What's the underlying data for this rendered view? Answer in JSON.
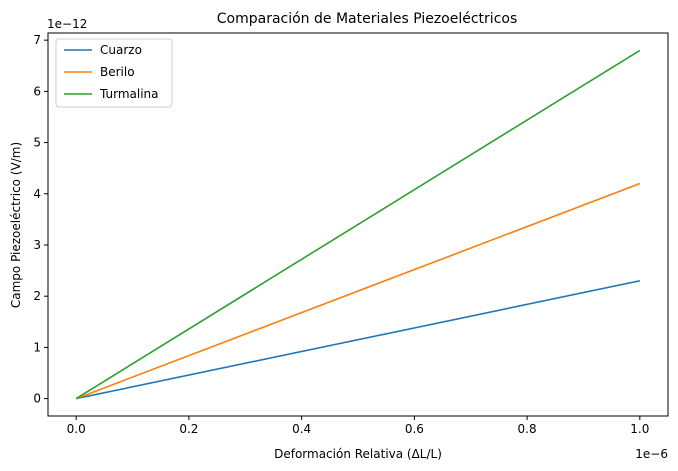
{
  "chart_data": {
    "type": "line",
    "title": "Comparación de Materiales Piezoeléctricos",
    "xlabel": "Deformación Relativa (ΔL/L)",
    "ylabel": "Campo Piezoeléctrico (V/m)",
    "x_offset_label": "1e−6",
    "y_offset_label": "1e−12",
    "x_scale": 1e-06,
    "y_scale": 1e-12,
    "xlim": [
      -5e-08,
      1.05e-06
    ],
    "ylim": [
      -3.4e-13,
      7.14e-12
    ],
    "x_ticks": [
      0,
      2e-07,
      4e-07,
      6e-07,
      8e-07,
      1e-06
    ],
    "x_tick_labels": [
      "0.0",
      "0.2",
      "0.4",
      "0.6",
      "0.8",
      "1.0"
    ],
    "y_ticks": [
      0,
      1e-12,
      2e-12,
      3e-12,
      4e-12,
      5e-12,
      6e-12,
      7e-12
    ],
    "y_tick_labels": [
      "0",
      "1",
      "2",
      "3",
      "4",
      "5",
      "6",
      "7"
    ],
    "grid": false,
    "legend_position": "top-left",
    "series": [
      {
        "name": "Cuarzo",
        "color": "#1f77b4",
        "x": [
          0,
          1e-06
        ],
        "y": [
          0,
          2.3e-12
        ]
      },
      {
        "name": "Berilo",
        "color": "#ff7f0e",
        "x": [
          0,
          1e-06
        ],
        "y": [
          0,
          4.2e-12
        ]
      },
      {
        "name": "Turmalina",
        "color": "#2ca02c",
        "x": [
          0,
          1e-06
        ],
        "y": [
          0,
          6.8e-12
        ]
      }
    ]
  }
}
